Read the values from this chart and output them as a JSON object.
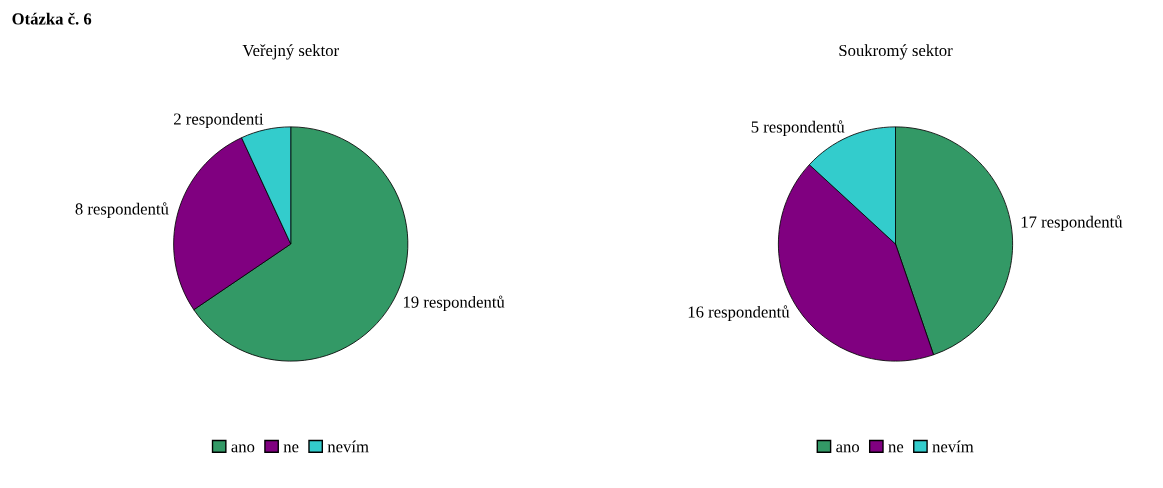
{
  "chart_data": [
    {
      "type": "pie",
      "title": "Veřejný sektor",
      "annotations": [
        "Otázka č. 6"
      ],
      "categories": [
        "ano",
        "ne",
        "nevím"
      ],
      "values": [
        19,
        8,
        2
      ],
      "colors": [
        "#339966",
        "#800080",
        "#33cccc"
      ],
      "value_labels": [
        "19 respondentů",
        "8 respondentů",
        "2 respondenti"
      ],
      "legend": "bottom"
    },
    {
      "type": "pie",
      "title": "Soukromý sektor",
      "categories": [
        "ano",
        "ne",
        "nevím"
      ],
      "values": [
        17,
        16,
        5
      ],
      "colors": [
        "#339966",
        "#800080",
        "#33cccc"
      ],
      "value_labels": [
        "17 respondentů",
        "16 respondentů",
        "5 respondentů"
      ],
      "legend": "bottom"
    }
  ]
}
